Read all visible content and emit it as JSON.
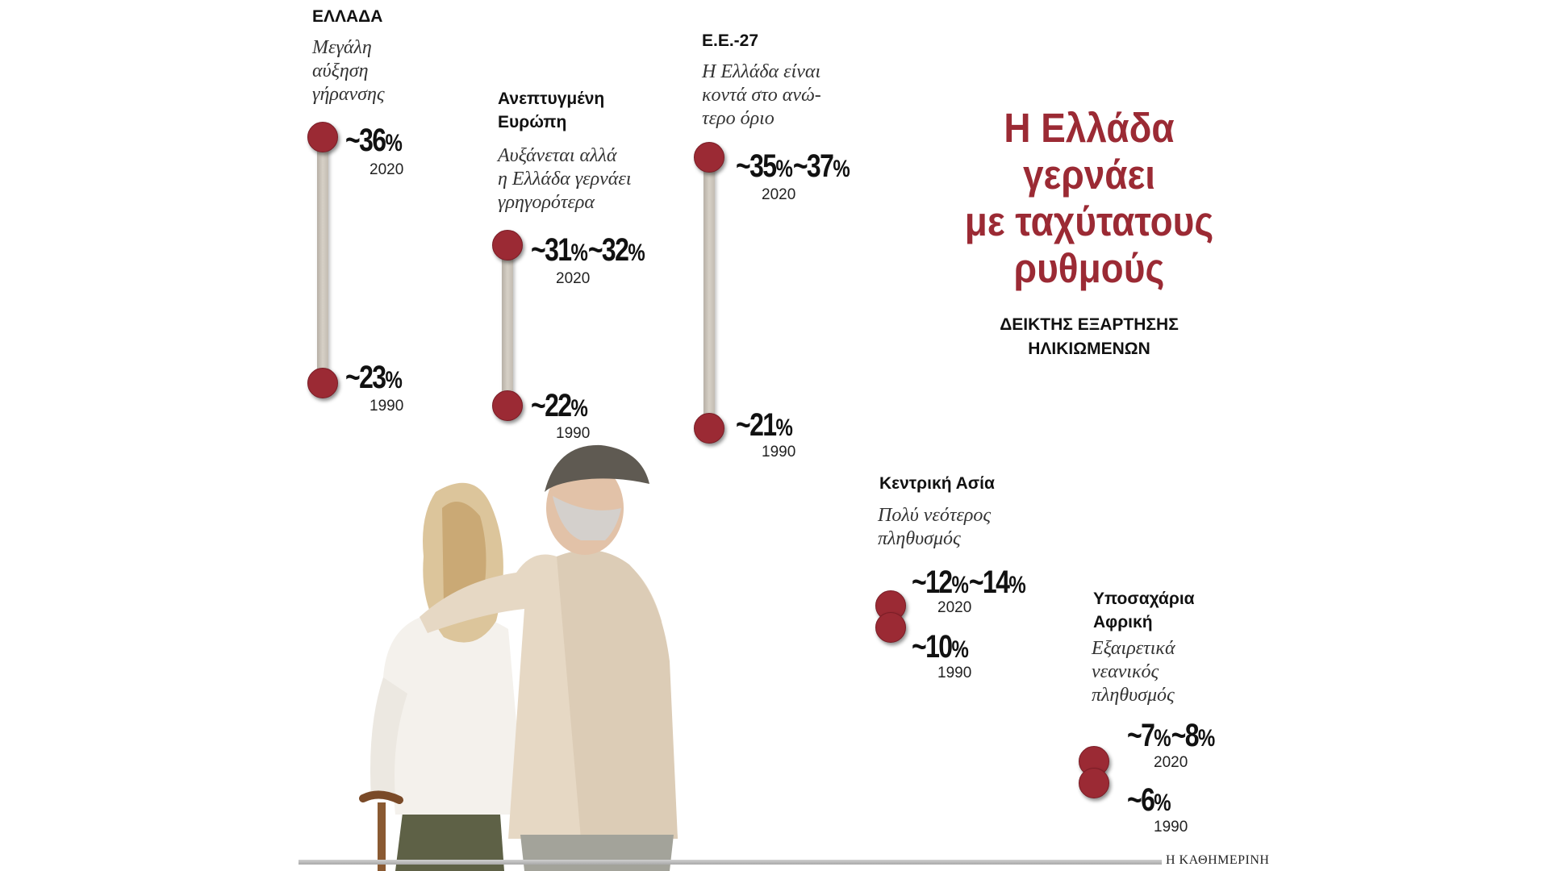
{
  "title": "Η Ελλάδα\nγερνάει\nμε ταχύτατους\nρυθμούς",
  "subtitle": "ΔΕΙΚΤΗΣ ΕΞΑΡΤΗΣΗΣ\nΗΛΙΚΙΩΜΕΝΩΝ",
  "source": "Η ΚΑΘΗΜΕΡΙΝΗ",
  "colors": {
    "dot": "#9b2a34",
    "title": "#9b2a34",
    "track": "#c9c3b9"
  },
  "chart_data": {
    "type": "dumbbell",
    "title": "Η Ελλάδα γερνάει με ταχύτατους ρυθμούς",
    "ylabel": "ΔΕΙΚΤΗΣ ΕΞΑΡΤΗΣΗΣ ΗΛΙΚΙΩΜΕΝΩΝ",
    "series_years": [
      "1990",
      "2020"
    ],
    "regions": [
      {
        "name": "ΕΛΛΑΔΑ",
        "note": "Μεγάλη\nαύξηση\nγήρανσης",
        "value_1990": "~23",
        "value_2020": "~36",
        "year_1990": "1990",
        "year_2020": "2020"
      },
      {
        "name": "Ανεπτυγμένη\nΕυρώπη",
        "note": "Αυξάνεται αλλά\nη Ελλάδα γερνάει\nγρηγορότερα",
        "value_1990": "~22",
        "value_2020": "~31",
        "value_2020_hi": "~32",
        "year_1990": "1990",
        "year_2020": "2020"
      },
      {
        "name": "Ε.Ε.-27",
        "note": "Η Ελλάδα είναι\nκοντά στο ανώ-\nτερο όριο",
        "value_1990": "~21",
        "value_2020": "~35",
        "value_2020_hi": "~37",
        "year_1990": "1990",
        "year_2020": "2020"
      },
      {
        "name": "Κεντρική Ασία",
        "note": "Πολύ νεότερος\nπληθυσμός",
        "value_1990": "~10",
        "value_2020": "~12",
        "value_2020_hi": "~14",
        "year_1990": "1990",
        "year_2020": "2020"
      },
      {
        "name": "Υποσαχάρια\nΑφρική",
        "note": "Εξαιρετικά\nνεανικός\nπληθυσμός",
        "value_1990": "~6",
        "value_2020": "~7",
        "value_2020_hi": "~8",
        "year_1990": "1990",
        "year_2020": "2020"
      }
    ],
    "pct": "%"
  }
}
